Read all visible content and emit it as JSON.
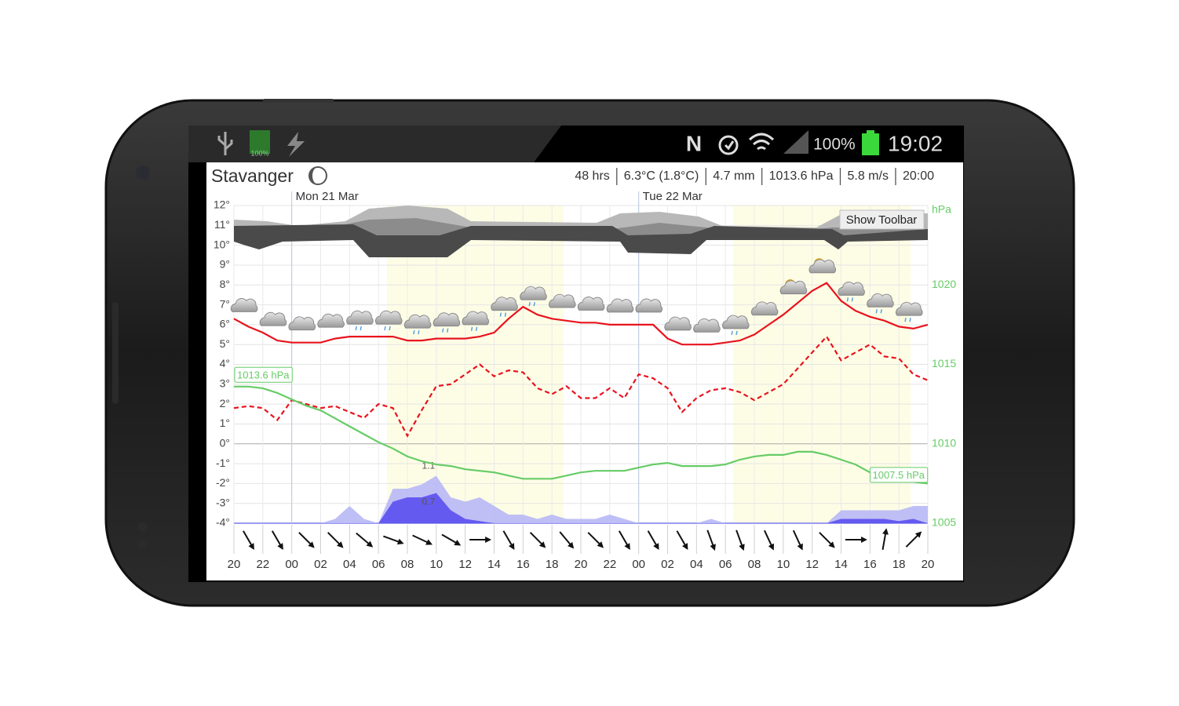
{
  "status_bar": {
    "battery_small": "100%",
    "network": "N",
    "battery": "100%",
    "time": "19:02"
  },
  "header": {
    "location": "Stavanger",
    "summary": [
      "48 hrs",
      "6.3°C (1.8°C)",
      "4.7 mm",
      "1013.6 hPa",
      "5.8 m/s",
      "20:00"
    ]
  },
  "toolbar_button": "Show Toolbar",
  "chart_data": {
    "type": "line",
    "x": [
      0,
      1,
      2,
      3,
      4,
      5,
      6,
      7,
      8,
      9,
      10,
      11,
      12,
      13,
      14,
      15,
      16,
      17,
      18,
      19,
      20,
      21,
      22,
      23,
      24,
      25,
      26,
      27,
      28,
      29,
      30,
      31,
      32,
      33,
      34,
      35,
      36,
      37,
      38,
      39,
      40,
      41,
      42,
      43,
      44,
      45,
      46,
      47,
      48
    ],
    "xlim": [
      0,
      48
    ],
    "xticks": [
      {
        "value": 0,
        "label": "20"
      },
      {
        "value": 2,
        "label": "22"
      },
      {
        "value": 4,
        "label": "00"
      },
      {
        "value": 6,
        "label": "02"
      },
      {
        "value": 8,
        "label": "04"
      },
      {
        "value": 10,
        "label": "06"
      },
      {
        "value": 12,
        "label": "08"
      },
      {
        "value": 14,
        "label": "10"
      },
      {
        "value": 16,
        "label": "12"
      },
      {
        "value": 18,
        "label": "14"
      },
      {
        "value": 20,
        "label": "16"
      },
      {
        "value": 22,
        "label": "18"
      },
      {
        "value": 24,
        "label": "20"
      },
      {
        "value": 26,
        "label": "22"
      },
      {
        "value": 28,
        "label": "00"
      },
      {
        "value": 30,
        "label": "02"
      },
      {
        "value": 32,
        "label": "04"
      },
      {
        "value": 34,
        "label": "06"
      },
      {
        "value": 36,
        "label": "08"
      },
      {
        "value": 38,
        "label": "10"
      },
      {
        "value": 40,
        "label": "12"
      },
      {
        "value": 42,
        "label": "14"
      },
      {
        "value": 44,
        "label": "16"
      },
      {
        "value": 46,
        "label": "18"
      },
      {
        "value": 48,
        "label": "20"
      }
    ],
    "day_labels": [
      {
        "value": 4,
        "label": "Mon 21 Mar"
      },
      {
        "value": 28,
        "label": "Tue 22 Mar"
      }
    ],
    "ylim": [
      -4,
      12
    ],
    "yticks": [
      {
        "value": -4,
        "label": "-4°"
      },
      {
        "value": -3,
        "label": "-3°"
      },
      {
        "value": -2,
        "label": "-2°"
      },
      {
        "value": -1,
        "label": "-1°"
      },
      {
        "value": 0,
        "label": "0°"
      },
      {
        "value": 1,
        "label": "1°"
      },
      {
        "value": 2,
        "label": "2°"
      },
      {
        "value": 3,
        "label": "3°"
      },
      {
        "value": 4,
        "label": "4°"
      },
      {
        "value": 5,
        "label": "5°"
      },
      {
        "value": 6,
        "label": "6°"
      },
      {
        "value": 7,
        "label": "7°"
      },
      {
        "value": 8,
        "label": "8°"
      },
      {
        "value": 9,
        "label": "9°"
      },
      {
        "value": 10,
        "label": "10°"
      },
      {
        "value": 11,
        "label": "11°"
      },
      {
        "value": 12,
        "label": "12°"
      }
    ],
    "y2label": "hPa",
    "y2lim": [
      1005,
      1025
    ],
    "y2ticks": [
      1005,
      1010,
      1015,
      1020
    ],
    "y2color": "#66cc66",
    "grid": true,
    "series": [
      {
        "kind": "area",
        "color": "#b8b8f6",
        "values": [
          0,
          0,
          0,
          0,
          0,
          0,
          0,
          0.1,
          0.4,
          0.1,
          0,
          0.8,
          0.8,
          0.9,
          1.1,
          0.6,
          0.5,
          0.6,
          0.4,
          0.2,
          0.2,
          0.1,
          0.2,
          0.1,
          0.1,
          0.1,
          0.2,
          0.1,
          0,
          0,
          0,
          0,
          0,
          0.1,
          0,
          0,
          0,
          0,
          0,
          0,
          0,
          0,
          0.3,
          0.3,
          0.3,
          0.3,
          0.3,
          0.4,
          0.4
        ]
      },
      {
        "kind": "area",
        "color": "#5b4ff0",
        "values": [
          0,
          0,
          0,
          0,
          0,
          0,
          0,
          0,
          0,
          0,
          0,
          0.5,
          0.6,
          0.6,
          0.7,
          0.3,
          0.1,
          0.05,
          0,
          0,
          0,
          0,
          0,
          0,
          0,
          0,
          0,
          0,
          0,
          0,
          0,
          0,
          0,
          0,
          0,
          0,
          0,
          0,
          0,
          0,
          0,
          0,
          0.1,
          0.1,
          0.1,
          0.1,
          0.05,
          0.1,
          0
        ]
      },
      {
        "kind": "line",
        "style": "dashed",
        "color": "#e8141e",
        "values": [
          1.8,
          1.9,
          1.8,
          1.2,
          2.2,
          2.0,
          1.8,
          1.9,
          1.6,
          1.3,
          2.0,
          1.8,
          0.4,
          1.7,
          2.9,
          3.0,
          3.5,
          4.0,
          3.4,
          3.7,
          3.6,
          2.8,
          2.5,
          2.9,
          2.3,
          2.3,
          2.8,
          2.3,
          3.5,
          3.3,
          2.8,
          1.6,
          2.3,
          2.7,
          2.8,
          2.6,
          2.2,
          2.6,
          3.0,
          3.8,
          4.6,
          5.4,
          4.2,
          4.6,
          5.0,
          4.4,
          4.3,
          3.5,
          3.2
        ]
      },
      {
        "kind": "line",
        "style": "solid",
        "color": "#66cc66",
        "axis": "y2",
        "values": [
          1013.6,
          1013.6,
          1013.5,
          1013.2,
          1012.8,
          1012.4,
          1012.1,
          1011.6,
          1011.1,
          1010.6,
          1010.1,
          1009.7,
          1009.2,
          1008.9,
          1008.7,
          1008.6,
          1008.4,
          1008.3,
          1008.2,
          1008.0,
          1007.8,
          1007.8,
          1007.8,
          1008.0,
          1008.2,
          1008.3,
          1008.3,
          1008.3,
          1008.5,
          1008.7,
          1008.8,
          1008.6,
          1008.6,
          1008.6,
          1008.7,
          1009.0,
          1009.2,
          1009.3,
          1009.3,
          1009.5,
          1009.5,
          1009.3,
          1009.0,
          1008.7,
          1008.2,
          1007.9,
          1007.7,
          1007.6,
          1007.5
        ],
        "value_labels": [
          "1013.6 hPa",
          null,
          null,
          null,
          null,
          null,
          null,
          null,
          null,
          null,
          null,
          null,
          null,
          null,
          null,
          null,
          null,
          null,
          null,
          null,
          null,
          null,
          null,
          null,
          null,
          null,
          null,
          null,
          null,
          null,
          null,
          null,
          null,
          null,
          null,
          null,
          null,
          null,
          null,
          null,
          null,
          null,
          null,
          null,
          null,
          null,
          null,
          null,
          "1007.5 hPa"
        ]
      },
      {
        "kind": "line",
        "style": "solid",
        "color": "#e8141e",
        "values": [
          6.3,
          5.9,
          5.6,
          5.2,
          5.1,
          5.1,
          5.1,
          5.3,
          5.4,
          5.4,
          5.4,
          5.4,
          5.2,
          5.2,
          5.3,
          5.3,
          5.3,
          5.4,
          5.6,
          6.3,
          6.9,
          6.5,
          6.3,
          6.2,
          6.1,
          6.1,
          6.0,
          6.0,
          6.0,
          6.0,
          5.3,
          5.0,
          5.0,
          5.0,
          5.1,
          5.2,
          5.5,
          6.0,
          6.5,
          7.1,
          7.7,
          8.1,
          7.2,
          6.7,
          6.4,
          6.2,
          5.9,
          5.8,
          6.0
        ]
      }
    ],
    "wind": {
      "x": [
        1,
        3,
        5,
        7,
        9,
        11,
        13,
        15,
        17,
        19,
        21,
        23,
        25,
        27,
        29,
        31,
        33,
        35,
        37,
        39,
        41,
        43,
        45,
        47
      ],
      "values": [
        330,
        330,
        315,
        315,
        310,
        290,
        295,
        300,
        270,
        330,
        315,
        320,
        315,
        330,
        330,
        330,
        340,
        340,
        335,
        335,
        315,
        270,
        190,
        225
      ]
    }
  }
}
